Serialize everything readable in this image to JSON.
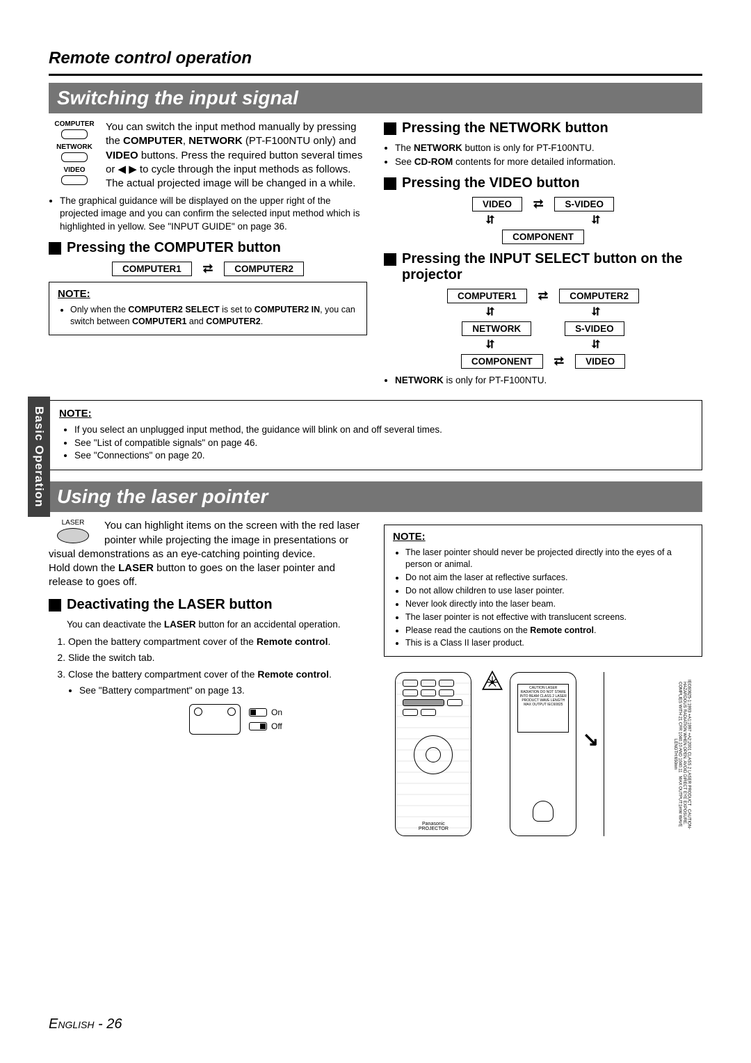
{
  "header": {
    "title": "Remote control operation"
  },
  "side_tab": "Basic Operation",
  "section1": {
    "banner": "Switching the input signal",
    "remote_labels": {
      "computer": "COMPUTER",
      "network": "NETWORK",
      "video": "VIDEO"
    },
    "intro_html": "You can switch the input method manually by pressing the <b>COMPUTER</b>, <b>NETWORK</b> (PT-F100NTU only) and <b>VIDEO</b> buttons. Press the required button several times or ◀ ▶ to cycle through the input methods as follows. The actual projected image will be changed in a while.",
    "bullet1": "The graphical guidance will be displayed on the upper right of the projected image and you can confirm the selected input method which is highlighted in yellow. See \"INPUT GUIDE\" on page 36.",
    "sub_computer": "Pressing the COMPUTER button",
    "computer_cycle": {
      "left": "COMPUTER1",
      "right": "COMPUTER2"
    },
    "note_computer_title": "NOTE:",
    "note_computer_html": "Only when the <b>COMPUTER2 SELECT</b> is set to <b>COMPUTER2 IN</b>, you can switch between <b>COMPUTER1</b> and <b>COMPUTER2</b>.",
    "sub_network": "Pressing the NETWORK button",
    "network_b1_html": "The <b>NETWORK</b> button is only for PT-F100NTU.",
    "network_b2_html": "See <b>CD-ROM</b> contents for more detailed information.",
    "sub_video": "Pressing the VIDEO button",
    "video_cycle": {
      "a": "VIDEO",
      "b": "S-VIDEO",
      "c": "COMPONENT"
    },
    "sub_inputselect": "Pressing the INPUT SELECT button on the projector",
    "inputselect_cycle": {
      "a": "COMPUTER1",
      "b": "COMPUTER2",
      "c": "NETWORK",
      "d": "S-VIDEO",
      "e": "COMPONENT",
      "f": "VIDEO"
    },
    "inputselect_note_html": "<b>NETWORK</b> is only for PT-F100NTU.",
    "wide_note_title": "NOTE:",
    "wide_notes": [
      "If you select an unplugged input method, the guidance will blink on and off several times.",
      "See \"List of compatible signals\" on page 46.",
      "See \"Connections\" on page 20."
    ]
  },
  "section2": {
    "banner": "Using the laser pointer",
    "laser_label": "LASER",
    "intro_html": "You can highlight items on the screen with the red laser pointer while projecting the image in presentations or visual demonstrations as an eye-catching pointing device.<br>Hold down the <b>LASER</b> button to goes on the laser pointer and release to goes off.",
    "sub_deactivate": "Deactivating the LASER button",
    "deactivate_intro_html": "You can deactivate the <b>LASER</b> button for an accidental operation.",
    "steps_html": [
      "Open the battery compartment cover of the <b>Remote control</b>.",
      "Slide the switch tab.",
      "Close the battery compartment cover of the <b>Remote control</b>."
    ],
    "step_sub": "See \"Battery compartment\" on page 13.",
    "switch": {
      "on": "On",
      "off": "Off"
    },
    "right_note_title": "NOTE:",
    "right_notes_html": [
      "The laser pointer should never be projected directly into the eyes of a person or animal.",
      "Do not aim the laser at reflective surfaces.",
      "Do not allow children to use laser pointer.",
      "Never look directly into the laser beam.",
      "The laser pointer is not effective with translucent screens.",
      "Please read the cautions on the <b>Remote control</b>.",
      "This is a Class II laser product."
    ],
    "remote_brand": "Panasonic",
    "remote_model": "PROJECTOR"
  },
  "footer": {
    "lang": "English",
    "sep": " - ",
    "page": "26"
  },
  "colors": {
    "banner_bg": "#757575",
    "banner_fg": "#ffffff",
    "tab_bg": "#404040"
  }
}
